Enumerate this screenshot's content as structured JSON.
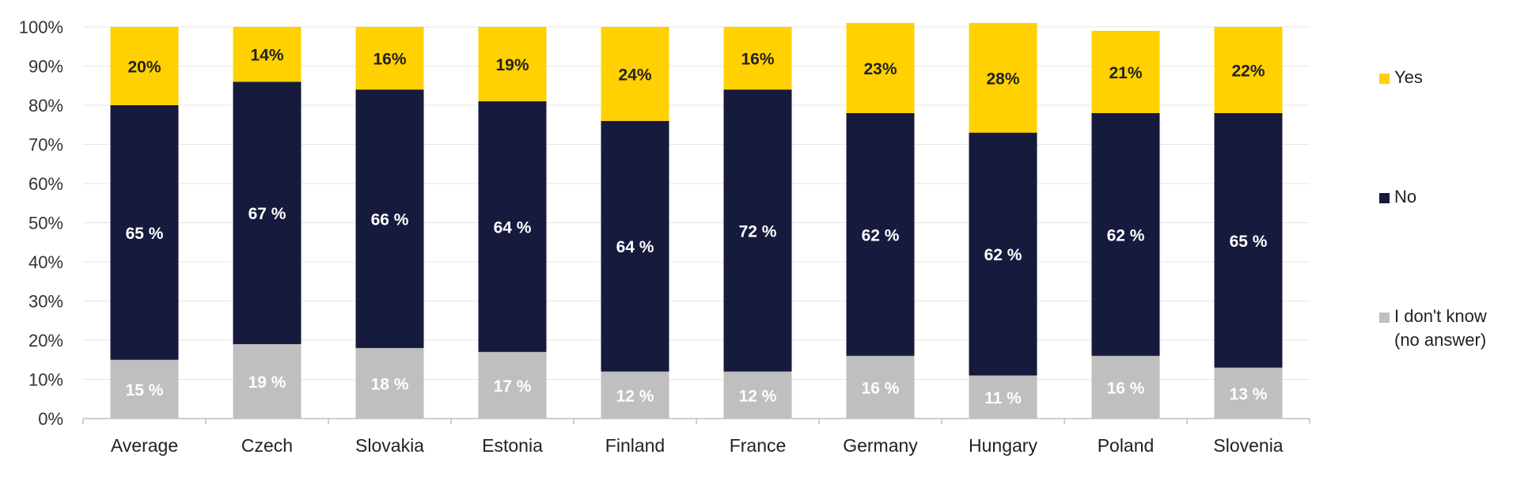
{
  "chart_data": {
    "type": "bar",
    "stacked": true,
    "categories": [
      "Average",
      "Czech",
      "Slovakia",
      "Estonia",
      "Finland",
      "France",
      "Germany",
      "Hungary",
      "Poland",
      "Slovenia"
    ],
    "series": [
      {
        "name": "I don't know (no answer)",
        "legend_lines": [
          "I don't know",
          "(no answer)"
        ],
        "color": "#bfbfbf",
        "label_color": "#ffffff",
        "values": [
          15,
          19,
          18,
          17,
          12,
          12,
          16,
          11,
          16,
          13
        ],
        "labels": [
          "15 %",
          "19 %",
          "18 %",
          "17 %",
          "12 %",
          "12 %",
          "16 %",
          "11 %",
          "16 %",
          "13 %"
        ]
      },
      {
        "name": "No",
        "legend_lines": [
          "No"
        ],
        "color": "#161a3d",
        "label_color": "#ffffff",
        "values": [
          65,
          67,
          66,
          64,
          64,
          72,
          62,
          62,
          62,
          65
        ],
        "labels": [
          "65 %",
          "67 %",
          "66 %",
          "64 %",
          "64 %",
          "72 %",
          "62 %",
          "62 %",
          "62 %",
          "65 %"
        ]
      },
      {
        "name": "Yes",
        "legend_lines": [
          "Yes"
        ],
        "color": "#ffd100",
        "label_color": "#222222",
        "values": [
          20,
          14,
          16,
          19,
          24,
          16,
          23,
          28,
          21,
          22
        ],
        "labels": [
          "20%",
          "14%",
          "16%",
          "19%",
          "24%",
          "16%",
          "23%",
          "28%",
          "21%",
          "22%"
        ]
      }
    ],
    "ylim": [
      0,
      100
    ],
    "yticks": [
      "0%",
      "10%",
      "20%",
      "30%",
      "40%",
      "50%",
      "60%",
      "70%",
      "80%",
      "90%",
      "100%"
    ],
    "grid": true,
    "legend_position": "right",
    "legend_order": [
      "Yes",
      "No",
      "I don't know (no answer)"
    ],
    "title": "",
    "xlabel": "",
    "ylabel": ""
  }
}
